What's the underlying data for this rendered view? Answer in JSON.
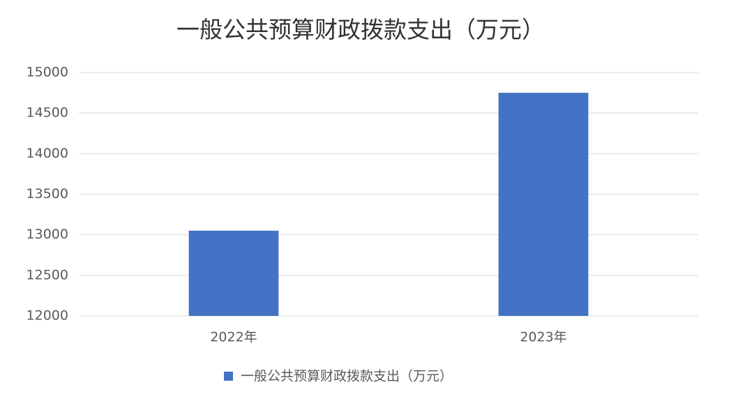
{
  "chart_data": {
    "type": "bar",
    "title": "一般公共预算财政拨款支出（万元）",
    "categories": [
      "2022年",
      "2023年"
    ],
    "series": [
      {
        "name": "一般公共预算财政拨款支出（万元）",
        "color": "#4472c4",
        "values": [
          13050,
          14750
        ]
      }
    ],
    "ylim": [
      12000,
      15000
    ],
    "yticks": [
      12000,
      12500,
      13000,
      13500,
      14000,
      14500,
      15000
    ],
    "grid": true,
    "legend": "bottom"
  }
}
